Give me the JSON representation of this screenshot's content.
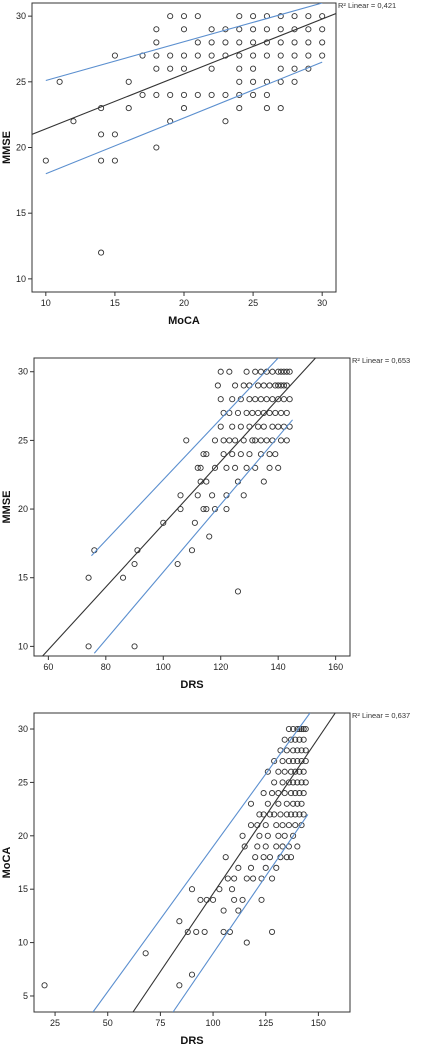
{
  "chart_data": [
    {
      "type": "scatter",
      "xlabel": "MoCA",
      "ylabel": "MMSE",
      "fit_label": "R² Linear = 0,421",
      "xlim": [
        9,
        31
      ],
      "ylim": [
        9,
        31
      ],
      "xticks": [
        10,
        15,
        20,
        25,
        30
      ],
      "yticks": [
        10,
        15,
        20,
        25,
        30
      ],
      "fit_line": [
        [
          9,
          21.0
        ],
        [
          31,
          30.2
        ]
      ],
      "ci_upper": [
        [
          10,
          25.1
        ],
        [
          30,
          31.0
        ]
      ],
      "ci_lower": [
        [
          10,
          18.0
        ],
        [
          30,
          26.5
        ]
      ],
      "points": [
        [
          10,
          19
        ],
        [
          11,
          25
        ],
        [
          12,
          22
        ],
        [
          14,
          23
        ],
        [
          14,
          21
        ],
        [
          14,
          19
        ],
        [
          14,
          12
        ],
        [
          15,
          27
        ],
        [
          15,
          21
        ],
        [
          15,
          19
        ],
        [
          16,
          25
        ],
        [
          16,
          23
        ],
        [
          17,
          27
        ],
        [
          17,
          24
        ],
        [
          18,
          29
        ],
        [
          18,
          28
        ],
        [
          18,
          27
        ],
        [
          18,
          26
        ],
        [
          18,
          24
        ],
        [
          18,
          20
        ],
        [
          19,
          30
        ],
        [
          19,
          27
        ],
        [
          19,
          26
        ],
        [
          19,
          24
        ],
        [
          19,
          22
        ],
        [
          20,
          30
        ],
        [
          20,
          29
        ],
        [
          20,
          27
        ],
        [
          20,
          26
        ],
        [
          20,
          24
        ],
        [
          20,
          23
        ],
        [
          21,
          30
        ],
        [
          21,
          28
        ],
        [
          21,
          27
        ],
        [
          21,
          24
        ],
        [
          22,
          29
        ],
        [
          22,
          28
        ],
        [
          22,
          27
        ],
        [
          22,
          26
        ],
        [
          22,
          24
        ],
        [
          23,
          29
        ],
        [
          23,
          28
        ],
        [
          23,
          27
        ],
        [
          23,
          24
        ],
        [
          23,
          22
        ],
        [
          24,
          30
        ],
        [
          24,
          29
        ],
        [
          24,
          28
        ],
        [
          24,
          27
        ],
        [
          24,
          26
        ],
        [
          24,
          25
        ],
        [
          24,
          24
        ],
        [
          24,
          23
        ],
        [
          25,
          30
        ],
        [
          25,
          29
        ],
        [
          25,
          28
        ],
        [
          25,
          27
        ],
        [
          25,
          26
        ],
        [
          25,
          25
        ],
        [
          25,
          24
        ],
        [
          26,
          30
        ],
        [
          26,
          29
        ],
        [
          26,
          28
        ],
        [
          26,
          27
        ],
        [
          26,
          25
        ],
        [
          26,
          24
        ],
        [
          27,
          30
        ],
        [
          27,
          29
        ],
        [
          27,
          28
        ],
        [
          27,
          27
        ],
        [
          27,
          26
        ],
        [
          27,
          25
        ],
        [
          27,
          23
        ],
        [
          28,
          30
        ],
        [
          28,
          29
        ],
        [
          28,
          28
        ],
        [
          28,
          27
        ],
        [
          28,
          26
        ],
        [
          28,
          25
        ],
        [
          29,
          30
        ],
        [
          29,
          29
        ],
        [
          29,
          28
        ],
        [
          29,
          27
        ],
        [
          29,
          26
        ],
        [
          30,
          30
        ],
        [
          30,
          29
        ],
        [
          30,
          28
        ],
        [
          30,
          27
        ],
        [
          26,
          23
        ]
      ]
    },
    {
      "type": "scatter",
      "xlabel": "DRS",
      "ylabel": "MMSE",
      "fit_label": "R² Linear = 0,653",
      "xlim": [
        55,
        165
      ],
      "ylim": [
        9.3,
        31
      ],
      "xticks": [
        60,
        80,
        100,
        120,
        140,
        160
      ],
      "yticks": [
        10,
        15,
        20,
        25,
        30
      ],
      "fit_line": [
        [
          58,
          9.3
        ],
        [
          153,
          31
        ]
      ],
      "ci_upper": [
        [
          75,
          16.6
        ],
        [
          140,
          31
        ]
      ],
      "ci_lower": [
        [
          76,
          9.5
        ],
        [
          145,
          26.5
        ]
      ],
      "points": [
        [
          74,
          15
        ],
        [
          74,
          10
        ],
        [
          76,
          17
        ],
        [
          86,
          15
        ],
        [
          90,
          10
        ],
        [
          90,
          16
        ],
        [
          91,
          17
        ],
        [
          100,
          19
        ],
        [
          105,
          16
        ],
        [
          106,
          21
        ],
        [
          106,
          20
        ],
        [
          108,
          25
        ],
        [
          110,
          17
        ],
        [
          111,
          19
        ],
        [
          112,
          23
        ],
        [
          112,
          21
        ],
        [
          113,
          22
        ],
        [
          113,
          23
        ],
        [
          114,
          24
        ],
        [
          114,
          20
        ],
        [
          115,
          24
        ],
        [
          115,
          22
        ],
        [
          115,
          20
        ],
        [
          116,
          18
        ],
        [
          117,
          21
        ],
        [
          118,
          25
        ],
        [
          118,
          23
        ],
        [
          118,
          20
        ],
        [
          119,
          29
        ],
        [
          120,
          28
        ],
        [
          120,
          26
        ],
        [
          120,
          30
        ],
        [
          121,
          27
        ],
        [
          121,
          25
        ],
        [
          121,
          24
        ],
        [
          122,
          23
        ],
        [
          122,
          21
        ],
        [
          122,
          20
        ],
        [
          123,
          30
        ],
        [
          123,
          27
        ],
        [
          123,
          25
        ],
        [
          124,
          28
        ],
        [
          124,
          26
        ],
        [
          124,
          24
        ],
        [
          125,
          29
        ],
        [
          125,
          25
        ],
        [
          125,
          23
        ],
        [
          126,
          27
        ],
        [
          126,
          22
        ],
        [
          126,
          14
        ],
        [
          127,
          28
        ],
        [
          127,
          26
        ],
        [
          127,
          24
        ],
        [
          128,
          29
        ],
        [
          128,
          25
        ],
        [
          128,
          21
        ],
        [
          129,
          30
        ],
        [
          129,
          27
        ],
        [
          129,
          23
        ],
        [
          130,
          29
        ],
        [
          130,
          28
        ],
        [
          130,
          26
        ],
        [
          130,
          24
        ],
        [
          131,
          27
        ],
        [
          131,
          25
        ],
        [
          132,
          30
        ],
        [
          132,
          28
        ],
        [
          132,
          25
        ],
        [
          132,
          23
        ],
        [
          133,
          29
        ],
        [
          133,
          27
        ],
        [
          133,
          26
        ],
        [
          134,
          30
        ],
        [
          134,
          28
        ],
        [
          134,
          25
        ],
        [
          134,
          24
        ],
        [
          135,
          29
        ],
        [
          135,
          27
        ],
        [
          135,
          26
        ],
        [
          135,
          22
        ],
        [
          136,
          30
        ],
        [
          136,
          28
        ],
        [
          136,
          25
        ],
        [
          137,
          29
        ],
        [
          137,
          27
        ],
        [
          137,
          24
        ],
        [
          137,
          23
        ],
        [
          138,
          30
        ],
        [
          138,
          28
        ],
        [
          138,
          26
        ],
        [
          138,
          25
        ],
        [
          139,
          29
        ],
        [
          139,
          27
        ],
        [
          139,
          24
        ],
        [
          140,
          30
        ],
        [
          140,
          29
        ],
        [
          140,
          28
        ],
        [
          140,
          26
        ],
        [
          140,
          23
        ],
        [
          141,
          30
        ],
        [
          141,
          29
        ],
        [
          141,
          27
        ],
        [
          141,
          25
        ],
        [
          142,
          30
        ],
        [
          142,
          29
        ],
        [
          142,
          28
        ],
        [
          142,
          26
        ],
        [
          143,
          30
        ],
        [
          143,
          29
        ],
        [
          143,
          27
        ],
        [
          143,
          25
        ],
        [
          144,
          30
        ],
        [
          144,
          28
        ],
        [
          144,
          26
        ]
      ]
    },
    {
      "type": "scatter",
      "xlabel": "DRS",
      "ylabel": "MoCA",
      "fit_label": "R² Linear = 0,637",
      "xlim": [
        15,
        165
      ],
      "ylim": [
        3.5,
        31.5
      ],
      "xticks": [
        25,
        50,
        75,
        100,
        125,
        150
      ],
      "yticks": [
        5,
        10,
        15,
        20,
        25,
        30
      ],
      "fit_line": [
        [
          62,
          3.5
        ],
        [
          158,
          31.5
        ]
      ],
      "ci_upper": [
        [
          43,
          3.5
        ],
        [
          146,
          31.5
        ]
      ],
      "ci_lower": [
        [
          81,
          3.5
        ],
        [
          145,
          22
        ]
      ],
      "points": [
        [
          20,
          6
        ],
        [
          68,
          9
        ],
        [
          84,
          6
        ],
        [
          84,
          12
        ],
        [
          88,
          11
        ],
        [
          90,
          7
        ],
        [
          90,
          15
        ],
        [
          92,
          11
        ],
        [
          94,
          14
        ],
        [
          96,
          11
        ],
        [
          97,
          14
        ],
        [
          100,
          14
        ],
        [
          103,
          15
        ],
        [
          105,
          11
        ],
        [
          105,
          13
        ],
        [
          106,
          18
        ],
        [
          107,
          16
        ],
        [
          108,
          11
        ],
        [
          109,
          15
        ],
        [
          110,
          14
        ],
        [
          110,
          16
        ],
        [
          112,
          17
        ],
        [
          112,
          13
        ],
        [
          114,
          20
        ],
        [
          114,
          14
        ],
        [
          115,
          19
        ],
        [
          116,
          16
        ],
        [
          116,
          10
        ],
        [
          118,
          17
        ],
        [
          118,
          23
        ],
        [
          118,
          21
        ],
        [
          119,
          16
        ],
        [
          120,
          18
        ],
        [
          121,
          21
        ],
        [
          121,
          19
        ],
        [
          122,
          22
        ],
        [
          122,
          20
        ],
        [
          123,
          16
        ],
        [
          123,
          14
        ],
        [
          124,
          24
        ],
        [
          124,
          22
        ],
        [
          124,
          18
        ],
        [
          125,
          21
        ],
        [
          125,
          19
        ],
        [
          125,
          17
        ],
        [
          126,
          26
        ],
        [
          126,
          23
        ],
        [
          126,
          20
        ],
        [
          127,
          22
        ],
        [
          127,
          18
        ],
        [
          128,
          24
        ],
        [
          128,
          11
        ],
        [
          128,
          16
        ],
        [
          129,
          27
        ],
        [
          129,
          25
        ],
        [
          129,
          22
        ],
        [
          130,
          21
        ],
        [
          130,
          19
        ],
        [
          130,
          17
        ],
        [
          131,
          26
        ],
        [
          131,
          24
        ],
        [
          131,
          23
        ],
        [
          131,
          20
        ],
        [
          132,
          28
        ],
        [
          132,
          22
        ],
        [
          132,
          18
        ],
        [
          133,
          27
        ],
        [
          133,
          25
        ],
        [
          133,
          21
        ],
        [
          133,
          19
        ],
        [
          134,
          29
        ],
        [
          134,
          26
        ],
        [
          134,
          24
        ],
        [
          134,
          20
        ],
        [
          135,
          28
        ],
        [
          135,
          23
        ],
        [
          135,
          22
        ],
        [
          135,
          18
        ],
        [
          136,
          30
        ],
        [
          136,
          27
        ],
        [
          136,
          25
        ],
        [
          136,
          21
        ],
        [
          136,
          19
        ],
        [
          137,
          29
        ],
        [
          137,
          26
        ],
        [
          137,
          24
        ],
        [
          137,
          22
        ],
        [
          137,
          18
        ],
        [
          138,
          30
        ],
        [
          138,
          28
        ],
        [
          138,
          27
        ],
        [
          138,
          25
        ],
        [
          138,
          23
        ],
        [
          138,
          20
        ],
        [
          139,
          29
        ],
        [
          139,
          26
        ],
        [
          139,
          24
        ],
        [
          139,
          22
        ],
        [
          139,
          21
        ],
        [
          140,
          30
        ],
        [
          140,
          28
        ],
        [
          140,
          27
        ],
        [
          140,
          25
        ],
        [
          140,
          23
        ],
        [
          140,
          19
        ],
        [
          141,
          30
        ],
        [
          141,
          29
        ],
        [
          141,
          26
        ],
        [
          141,
          24
        ],
        [
          141,
          22
        ],
        [
          142,
          30
        ],
        [
          142,
          28
        ],
        [
          142,
          27
        ],
        [
          142,
          25
        ],
        [
          142,
          23
        ],
        [
          142,
          21
        ],
        [
          143,
          30
        ],
        [
          143,
          29
        ],
        [
          143,
          26
        ],
        [
          143,
          24
        ],
        [
          143,
          22
        ],
        [
          144,
          30
        ],
        [
          144,
          28
        ],
        [
          144,
          27
        ],
        [
          144,
          25
        ]
      ]
    }
  ]
}
